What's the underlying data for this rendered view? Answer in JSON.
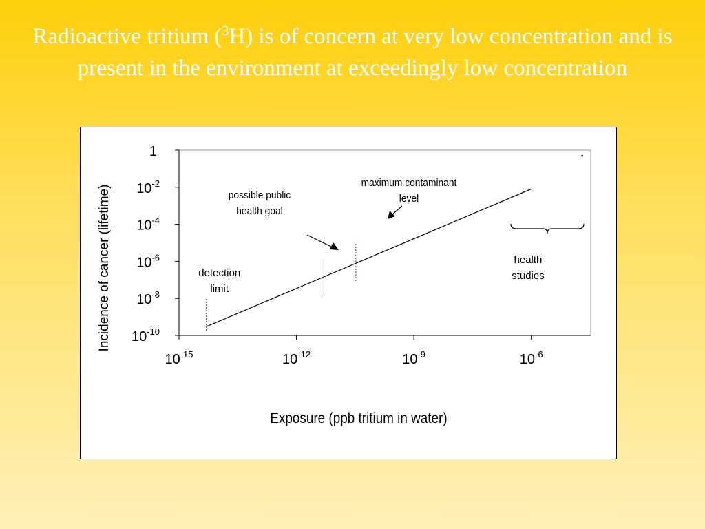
{
  "slide": {
    "title_before": "Radioactive tritium (",
    "title_sup": "3",
    "title_after": "H) is of concern at very low concentration and is present in the environment at exceedingly low concentration"
  },
  "chart_data": {
    "type": "line",
    "xlabel": "Exposure (ppb tritium in water)",
    "ylabel": "Incidence of cancer (lifetime)",
    "x_scale": "log",
    "y_scale": "log",
    "xlim": [
      1e-15,
      3.3e-05
    ],
    "ylim": [
      1e-10,
      1
    ],
    "x_ticks": [
      {
        "value": 1e-15,
        "base": "10",
        "exp": "-15"
      },
      {
        "value": 1e-12,
        "base": "10",
        "exp": "-12"
      },
      {
        "value": 1e-09,
        "base": "10",
        "exp": "-9"
      },
      {
        "value": 1e-06,
        "base": "10",
        "exp": "-6"
      }
    ],
    "y_ticks": [
      {
        "value": 1,
        "base": "1",
        "exp": ""
      },
      {
        "value": 0.01,
        "base": "10",
        "exp": "-2"
      },
      {
        "value": 0.0001,
        "base": "10",
        "exp": "-4"
      },
      {
        "value": 1e-06,
        "base": "10",
        "exp": "-6"
      },
      {
        "value": 1e-08,
        "base": "10",
        "exp": "-8"
      },
      {
        "value": 1e-10,
        "base": "10",
        "exp": "-10"
      }
    ],
    "series": [
      {
        "x": [
          5e-15,
          1e-06
        ],
        "y": [
          3e-10,
          0.008
        ]
      }
    ],
    "grid": false,
    "annotations": {
      "detection_limit": {
        "label_line1": "detection",
        "label_line2": "limit",
        "x": 5e-15
      },
      "public_health_goal": {
        "label_line1": "possible public",
        "label_line2": "health goal",
        "x": 5e-12
      },
      "mcl": {
        "label_line1": "maximum contaminant",
        "label_line2": "level",
        "x": 3.3e-11
      },
      "health_studies": {
        "label_line1": "health",
        "label_line2": "studies",
        "x_from": 3e-07,
        "x_to": 2.2e-05
      }
    },
    "outlier_point": {
      "x": 2e-05,
      "y": 0.5
    }
  }
}
